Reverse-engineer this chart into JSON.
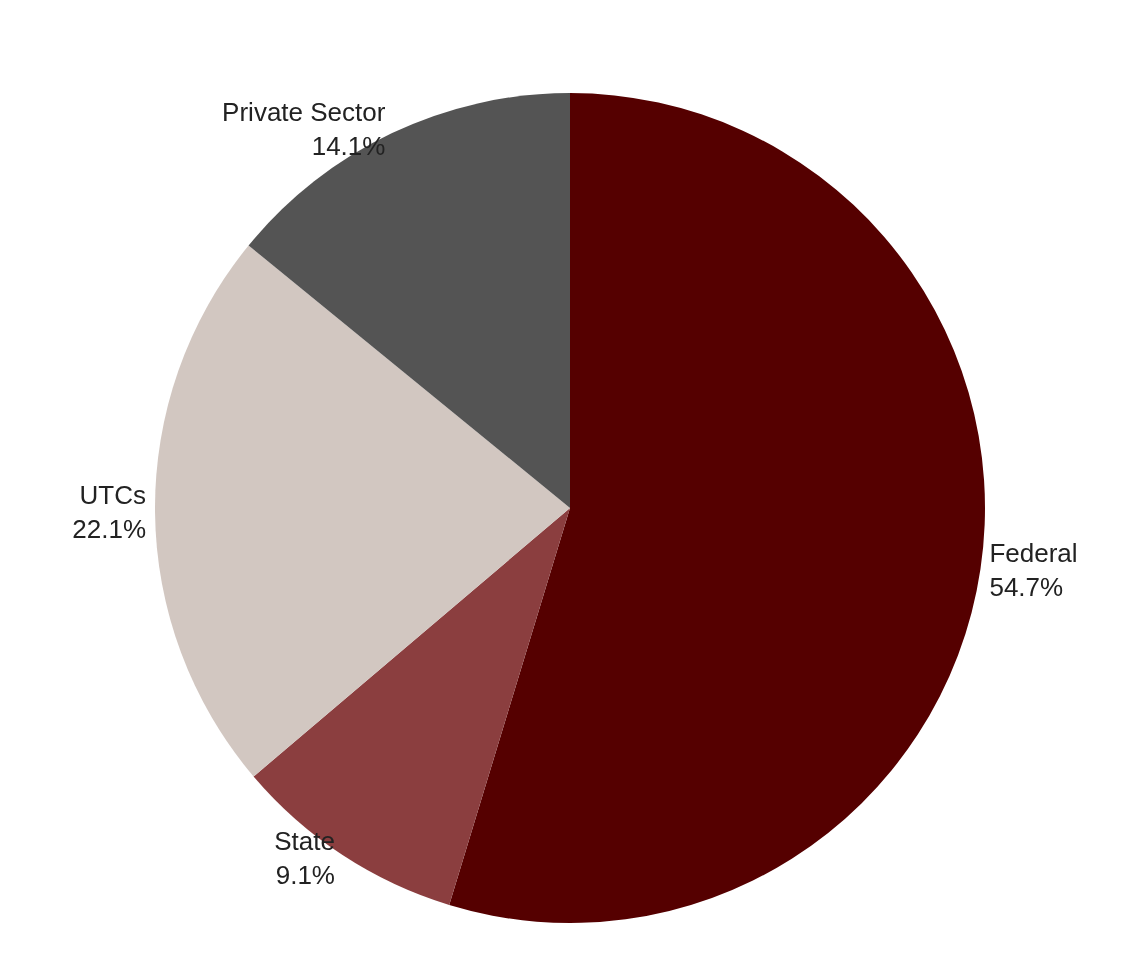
{
  "chart_data": {
    "type": "pie",
    "categories": [
      "Federal",
      "State",
      "UTCs",
      "Private Sector"
    ],
    "values": [
      54.7,
      9.1,
      22.1,
      14.1
    ],
    "value_labels": [
      "54.7%",
      "9.1%",
      "22.1%",
      "14.1%"
    ],
    "colors": [
      "#550000",
      "#8b3e3f",
      "#d2c7c1",
      "#545454"
    ],
    "legend": false
  }
}
